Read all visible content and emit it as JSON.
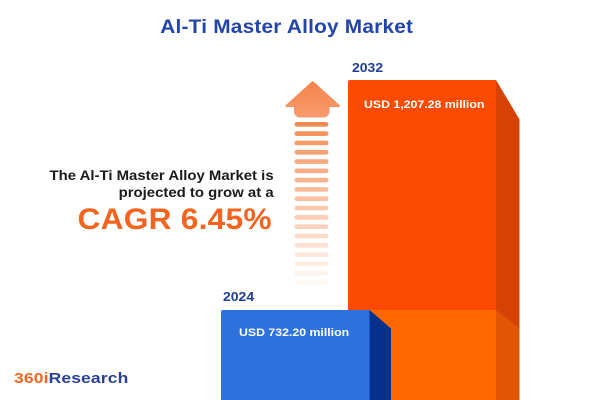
{
  "title": "Al-Ti Master Alloy Market",
  "growth_text": {
    "line1": "The Al-Ti Master Alloy Market is",
    "line2": "projected to grow at a",
    "cagr_label": "CAGR 6.45%"
  },
  "logo": {
    "prefix": "360i",
    "suffix": "Research"
  },
  "arrow": {
    "name": "growth-arrow-icon",
    "stripe_count": 19,
    "color_start": "#F68C52",
    "color_end": "#FFFFFF",
    "head_color_top": "#F5824B",
    "head_color_bottom": "#F89C6D"
  },
  "colors": {
    "title_blue": "#2344A8",
    "year_label_blue": "#1F3D96",
    "text_dark": "#1A1A1A",
    "cagr_orange": "#F4641F",
    "logo_orange": "#F26522",
    "logo_blue": "#2A3F97",
    "background": "#FFFFFF"
  },
  "chart_data": {
    "type": "bar",
    "title": "Al-Ti Master Alloy Market",
    "unit": "USD million",
    "categories": [
      "2024",
      "2032"
    ],
    "values": [
      732.2,
      1207.28
    ],
    "cagr_percent": 6.45,
    "bars": [
      {
        "year": "2024",
        "label": "USD 732.20 million",
        "value": 732.2,
        "front_color": "#2E72E0",
        "side_color": "#05308C"
      },
      {
        "year": "2032",
        "label": "USD 1,207.28 million",
        "value": 1207.28,
        "front_color": "#FB4A02",
        "side_color": "#D64203",
        "lower_front_color": "#FF6703",
        "lower_side_color": "#E15505"
      }
    ]
  }
}
